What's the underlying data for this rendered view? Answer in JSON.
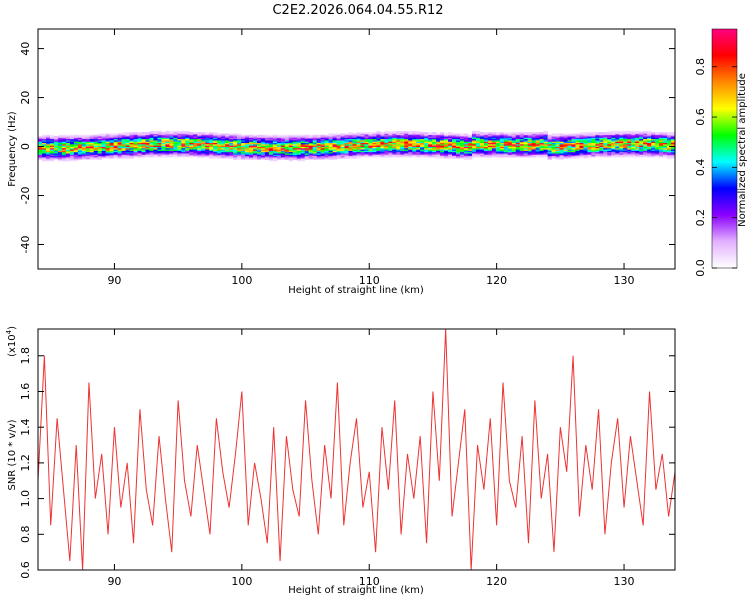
{
  "title": "C2E2.2026.064.04.55.R12",
  "colors": {
    "snr_line": "#ee3333",
    "colorbar_stops": [
      "#ffffff",
      "#e3b0ff",
      "#8a00ff",
      "#0000ff",
      "#00ffff",
      "#00ff00",
      "#ffff00",
      "#ff8800",
      "#ff0000",
      "#ff0080"
    ]
  },
  "chart_data": [
    {
      "type": "heatmap",
      "xlabel": "Height of straight line (km)",
      "ylabel": "Frequency (Hz)",
      "xlim": [
        84,
        134
      ],
      "ylim": [
        -50,
        48
      ],
      "x_ticks": [
        90,
        100,
        110,
        120,
        130
      ],
      "y_ticks": [
        40,
        20,
        0,
        -20,
        -40
      ],
      "band_center_hz": 0,
      "band_halfwidth_hz": 4,
      "colorbar": {
        "label": "Normalized spectral amplitude",
        "range": [
          0.0,
          0.95
        ],
        "ticks": [
          "0.0",
          "0.2",
          "0.4",
          "0.6",
          "0.8"
        ]
      }
    },
    {
      "type": "line",
      "xlabel": "Height of straight line (km)",
      "ylabel": "SNR (10 * v/v)",
      "y_scale_note": "(x10",
      "y_scale_exp": "4",
      "xlim": [
        84,
        134
      ],
      "ylim": [
        0.6,
        1.95
      ],
      "x_ticks": [
        90,
        100,
        110,
        120,
        130
      ],
      "y_ticks": [
        "0.6",
        "0.8",
        "1.0",
        "1.2",
        "1.4",
        "1.6",
        "1.8"
      ],
      "series": [
        {
          "x": [
            84.0,
            84.5,
            85.0,
            85.5,
            86.0,
            86.5,
            87.0,
            87.5,
            88.0,
            88.5,
            89.0,
            89.5,
            90.0,
            90.5,
            91.0,
            91.5,
            92.0,
            92.5,
            93.0,
            93.5,
            94.0,
            94.5,
            95.0,
            95.5,
            96.0,
            96.5,
            97.0,
            97.5,
            98.0,
            98.5,
            99.0,
            99.5,
            100.0,
            100.5,
            101.0,
            101.5,
            102.0,
            102.5,
            103.0,
            103.5,
            104.0,
            104.5,
            105.0,
            105.5,
            106.0,
            106.5,
            107.0,
            107.5,
            108.0,
            108.5,
            109.0,
            109.5,
            110.0,
            110.5,
            111.0,
            111.5,
            112.0,
            112.5,
            113.0,
            113.5,
            114.0,
            114.5,
            115.0,
            115.5,
            116.0,
            116.5,
            117.0,
            117.5,
            118.0,
            118.5,
            119.0,
            119.5,
            120.0,
            120.5,
            121.0,
            121.5,
            122.0,
            122.5,
            123.0,
            123.5,
            124.0,
            124.5,
            125.0,
            125.5,
            126.0,
            126.5,
            127.0,
            127.5,
            128.0,
            128.5,
            129.0,
            129.5,
            130.0,
            130.5,
            131.0,
            131.5,
            132.0,
            132.5,
            133.0,
            133.5,
            134.0
          ],
          "y": [
            1.1,
            1.8,
            0.85,
            1.45,
            1.05,
            0.65,
            1.3,
            0.6,
            1.65,
            1.0,
            1.25,
            0.8,
            1.4,
            0.95,
            1.2,
            0.75,
            1.5,
            1.05,
            0.85,
            1.35,
            1.0,
            0.7,
            1.55,
            1.1,
            0.9,
            1.3,
            1.05,
            0.8,
            1.45,
            1.15,
            0.95,
            1.25,
            1.6,
            0.85,
            1.2,
            1.0,
            0.75,
            1.4,
            0.65,
            1.35,
            1.05,
            0.9,
            1.55,
            1.1,
            0.8,
            1.3,
            1.0,
            1.65,
            0.85,
            1.2,
            1.45,
            0.95,
            1.15,
            0.7,
            1.4,
            1.05,
            1.55,
            0.8,
            1.25,
            1.0,
            1.35,
            0.75,
            1.6,
            1.1,
            1.95,
            0.9,
            1.2,
            1.5,
            0.6,
            1.3,
            1.05,
            1.45,
            0.85,
            1.65,
            1.1,
            0.95,
            1.35,
            0.75,
            1.55,
            1.0,
            1.25,
            0.7,
            1.4,
            1.15,
            1.8,
            0.9,
            1.3,
            1.05,
            1.5,
            0.8,
            1.2,
            1.45,
            0.95,
            1.35,
            1.1,
            0.85,
            1.6,
            1.05,
            1.25,
            0.9,
            1.15
          ]
        }
      ]
    }
  ]
}
